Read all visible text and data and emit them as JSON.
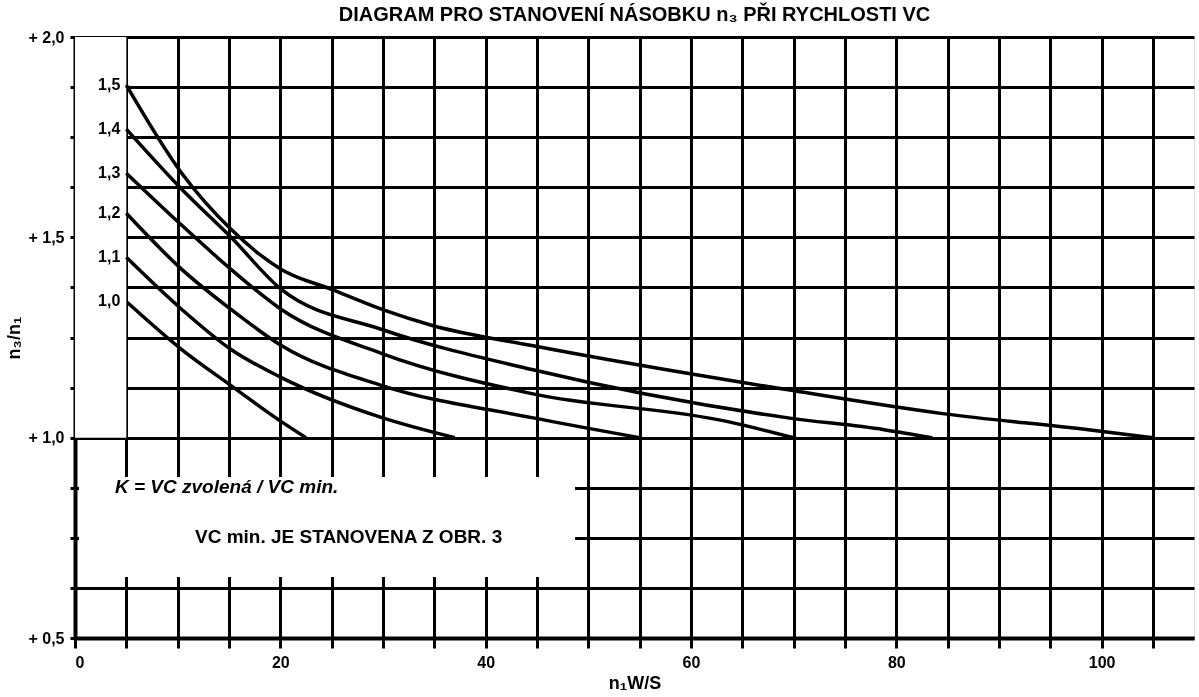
{
  "chart_data": {
    "type": "line",
    "title": "DIAGRAM PRO STANOVENÍ NÁSOBKU n₃ PŘI RYCHLOSTI VC",
    "xlabel": "n₁W/S",
    "ylabel": "n₃/n₁",
    "series": [
      {
        "name": "1,0",
        "color": "#000000",
        "x": [
          5,
          10.4,
          15.2,
          20.1,
          22.5
        ],
        "values": [
          1.34,
          1.22,
          1.13,
          1.04,
          1.0
        ]
      },
      {
        "name": "1,1",
        "color": "#000000",
        "x": [
          5,
          10.4,
          15.2,
          20.1,
          29.9,
          37
        ],
        "values": [
          1.45,
          1.32,
          1.22,
          1.15,
          1.05,
          1.0
        ]
      },
      {
        "name": "1,2",
        "color": "#000000",
        "x": [
          5,
          10.4,
          15.2,
          20.1,
          29.9,
          44.5,
          55
        ],
        "values": [
          1.56,
          1.42,
          1.32,
          1.23,
          1.13,
          1.05,
          1.0
        ]
      },
      {
        "name": "1,3",
        "color": "#000000",
        "x": [
          5,
          10.4,
          15.2,
          20.1,
          29.9,
          44.5,
          63.6,
          70
        ],
        "values": [
          1.66,
          1.53,
          1.42,
          1.32,
          1.21,
          1.11,
          1.04,
          1.0
        ]
      },
      {
        "name": "1,4",
        "color": "#000000",
        "x": [
          5,
          10.4,
          15.2,
          20.1,
          29.9,
          44.5,
          69.3,
          78.8,
          83.5
        ],
        "values": [
          1.77,
          1.62,
          1.5,
          1.37,
          1.27,
          1.17,
          1.05,
          1.02,
          1.0
        ]
      },
      {
        "name": "1,5",
        "color": "#000000",
        "x": [
          5,
          10.4,
          15.2,
          20.1,
          25,
          29.9,
          34.8,
          44.5,
          69.3,
          84.5,
          98.7,
          105
        ],
        "values": [
          1.88,
          1.66,
          1.52,
          1.42,
          1.37,
          1.32,
          1.28,
          1.23,
          1.12,
          1.06,
          1.02,
          1.0
        ]
      }
    ],
    "xlim": [
      0,
      109
    ],
    "xticks": [
      0,
      {
        "value": 5,
        "label": null
      },
      {
        "value": 10,
        "label": null
      },
      {
        "value": 15,
        "label": null
      },
      20,
      {
        "value": 25,
        "label": null
      },
      {
        "value": 30,
        "label": null
      },
      {
        "value": 35,
        "label": null
      },
      40,
      {
        "value": 45,
        "label": null
      },
      {
        "value": 50,
        "label": null
      },
      {
        "value": 55,
        "label": null
      },
      60,
      {
        "value": 65,
        "label": null
      },
      {
        "value": 70,
        "label": null
      },
      {
        "value": 75,
        "label": null
      },
      80,
      {
        "value": 85,
        "label": null
      },
      {
        "value": 90,
        "label": null
      },
      {
        "value": 95,
        "label": null
      },
      100,
      {
        "value": 105,
        "label": null
      }
    ],
    "ylim": [
      0.5,
      2.0
    ],
    "yticks": [
      {
        "value": 0.5,
        "label": "+ 0,5"
      },
      {
        "value": 0.625,
        "label": null
      },
      {
        "value": 0.75,
        "label": null
      },
      {
        "value": 0.875,
        "label": null
      },
      {
        "value": 1.0,
        "label": "+ 1,0"
      },
      {
        "value": 1.125,
        "label": null
      },
      {
        "value": 1.25,
        "label": null
      },
      {
        "value": 1.375,
        "label": null
      },
      {
        "value": 1.5,
        "label": "+ 1,5"
      },
      {
        "value": 1.625,
        "label": null
      },
      {
        "value": 1.75,
        "label": null
      },
      {
        "value": 1.875,
        "label": null
      },
      {
        "value": 2.0,
        "label": "+ 2,0"
      }
    ],
    "grid": true,
    "legend": false,
    "marker": "none",
    "line_style": "solid",
    "annotations": [
      "K = VC zvolená / VC min.",
      "VC min. JE STANOVENA Z OBR. 3"
    ]
  }
}
